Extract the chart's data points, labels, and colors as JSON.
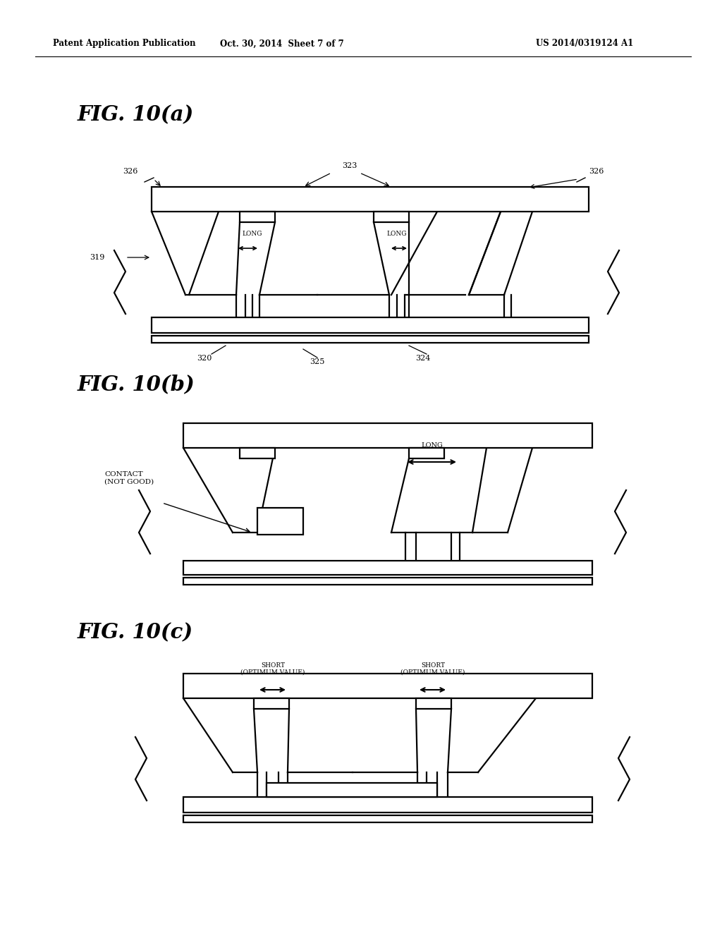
{
  "bg_color": "#ffffff",
  "header_left": "Patent Application Publication",
  "header_center": "Oct. 30, 2014  Sheet 7 of 7",
  "header_right": "US 2014/0319124 A1",
  "fig_a_label": "FIG. 10(a)",
  "fig_b_label": "FIG. 10(b)",
  "fig_c_label": "FIG. 10(c)",
  "line_color": "#000000"
}
